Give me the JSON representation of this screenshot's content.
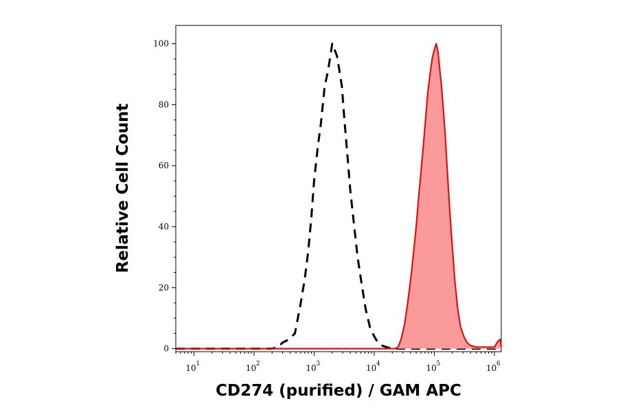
{
  "chart_data": {
    "type": "area",
    "xlabel": "CD274 (purified) / GAM APC",
    "ylabel": "Relative Cell Count",
    "x_scale": "log",
    "xlim": [
      5,
      1300000
    ],
    "ylim": [
      -1,
      106
    ],
    "x_ticks": [
      {
        "base": "10",
        "exp": "1",
        "value": 10
      },
      {
        "base": "10",
        "exp": "2",
        "value": 100
      },
      {
        "base": "10",
        "exp": "3",
        "value": 1000
      },
      {
        "base": "10",
        "exp": "4",
        "value": 10000
      },
      {
        "base": "10",
        "exp": "5",
        "value": 100000
      },
      {
        "base": "10",
        "exp": "6",
        "value": 1000000
      }
    ],
    "y_ticks": [
      {
        "label": "0",
        "value": 0
      },
      {
        "label": "20",
        "value": 20
      },
      {
        "label": "40",
        "value": 40
      },
      {
        "label": "60",
        "value": 60
      },
      {
        "label": "80",
        "value": 80
      },
      {
        "label": "100",
        "value": 100
      }
    ],
    "grid": false,
    "legend": "none",
    "series": [
      {
        "style": "dashed",
        "color": "#000000",
        "fill": "none",
        "points": [
          [
            5,
            0
          ],
          [
            200,
            0
          ],
          [
            250,
            0.5
          ],
          [
            300,
            2
          ],
          [
            380,
            3
          ],
          [
            480,
            5
          ],
          [
            600,
            15
          ],
          [
            700,
            23
          ],
          [
            800,
            32
          ],
          [
            900,
            43
          ],
          [
            1000,
            55
          ],
          [
            1150,
            66
          ],
          [
            1300,
            74
          ],
          [
            1500,
            86
          ],
          [
            1700,
            91
          ],
          [
            1900,
            97
          ],
          [
            2000,
            100
          ],
          [
            2200,
            98
          ],
          [
            2400,
            96
          ],
          [
            2600,
            92
          ],
          [
            2900,
            86
          ],
          [
            3200,
            75
          ],
          [
            3600,
            63
          ],
          [
            4000,
            52
          ],
          [
            4600,
            41
          ],
          [
            5300,
            30
          ],
          [
            6200,
            21
          ],
          [
            7200,
            13
          ],
          [
            8500,
            7
          ],
          [
            10000,
            4
          ],
          [
            11500,
            2
          ],
          [
            13500,
            1
          ],
          [
            16000,
            0.5
          ],
          [
            20000,
            0
          ],
          [
            1300000,
            0
          ]
        ]
      },
      {
        "style": "solid",
        "color": "#dd1111",
        "fill": "#fa9a9a",
        "points": [
          [
            5,
            0
          ],
          [
            22000,
            0
          ],
          [
            25000,
            0.5
          ],
          [
            28000,
            3
          ],
          [
            32000,
            8
          ],
          [
            36000,
            15
          ],
          [
            40000,
            22
          ],
          [
            45000,
            31
          ],
          [
            50000,
            40
          ],
          [
            55000,
            50
          ],
          [
            60000,
            58
          ],
          [
            66000,
            67
          ],
          [
            72000,
            76
          ],
          [
            78000,
            84
          ],
          [
            85000,
            90
          ],
          [
            92000,
            95
          ],
          [
            100000,
            98
          ],
          [
            108000,
            100
          ],
          [
            116000,
            97
          ],
          [
            124000,
            91
          ],
          [
            132000,
            86
          ],
          [
            142000,
            78
          ],
          [
            152000,
            70
          ],
          [
            165000,
            58
          ],
          [
            180000,
            46
          ],
          [
            198000,
            34
          ],
          [
            220000,
            22
          ],
          [
            245000,
            13
          ],
          [
            275000,
            7
          ],
          [
            310000,
            4
          ],
          [
            350000,
            2
          ],
          [
            400000,
            1
          ],
          [
            500000,
            0.5
          ],
          [
            650000,
            0.5
          ],
          [
            800000,
            0.5
          ],
          [
            1000000,
            0.5
          ],
          [
            1150000,
            2.5
          ],
          [
            1250000,
            3
          ],
          [
            1300000,
            0.5
          ]
        ]
      }
    ]
  }
}
